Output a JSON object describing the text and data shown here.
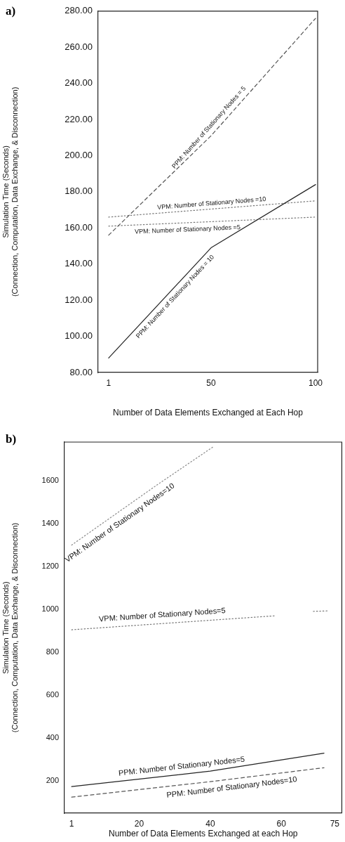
{
  "chart_data": [
    {
      "type": "line",
      "title": "a)",
      "xlabel": "Number of Data Elements Exchanged at Each Hop",
      "ylabel": "Simulation Time (Seconds)\n(Connection, Computation, Data Exchange, & Disconnection)",
      "xlim": [
        -4,
        101
      ],
      "xticks": [
        1,
        50,
        100
      ],
      "ylim": [
        80,
        280
      ],
      "yticks": [
        {
          "value": 80,
          "label": "80.00"
        },
        {
          "value": 100,
          "label": "100.00"
        },
        {
          "value": 120,
          "label": "120.00"
        },
        {
          "value": 140,
          "label": "140.00"
        },
        {
          "value": 160,
          "label": "160.00"
        },
        {
          "value": 180,
          "label": "180.00"
        },
        {
          "value": 200,
          "label": "200.00"
        },
        {
          "value": 220,
          "label": "220.00"
        },
        {
          "value": 240,
          "label": "240.00"
        },
        {
          "value": 260,
          "label": "260.00"
        },
        {
          "value": 280,
          "label": "280.00"
        }
      ],
      "grid": false,
      "series": [
        {
          "name": "PPM: Number of Stationary Nodes = 5",
          "color": "#555555",
          "line_style": "dashed",
          "x": [
            1,
            50,
            100
          ],
          "values": [
            156,
            211,
            276
          ]
        },
        {
          "name": "PPM: Number of Stationary Nodes = 10",
          "color": "#222222",
          "line_style": "solid",
          "x": [
            1,
            50,
            100
          ],
          "values": [
            88,
            149,
            184
          ]
        },
        {
          "name": "VPM: Number of Stationary Nodes =10",
          "color": "#777777",
          "line_style": "dotted",
          "x": [
            1,
            100
          ],
          "values": [
            166,
            175
          ]
        },
        {
          "name": "VPM: Number of Stationary Nodes =5",
          "color": "#777777",
          "line_style": "dotted",
          "x": [
            1,
            100
          ],
          "values": [
            161,
            166
          ]
        }
      ]
    },
    {
      "type": "line",
      "title": "b)",
      "xlabel": "Number of Data Elements Exchanged at each Hop",
      "ylabel": "Simulation Time (Seconds)\n(Connection, Computation, Data Exchange, & Disconnection)",
      "xlim": [
        -1,
        77
      ],
      "xticks": [
        1,
        20,
        40,
        60,
        75
      ],
      "ylim": [
        50,
        1780
      ],
      "yticks": [
        200,
        400,
        600,
        800,
        1000,
        1200,
        1400,
        1600
      ],
      "grid": false,
      "series": [
        {
          "name": "VPM: Number of Stationary Nodes=10",
          "color": "#888888",
          "line_style": "dotted",
          "x": [
            1,
            25,
            41
          ],
          "values": [
            1300,
            1580,
            1760
          ]
        },
        {
          "name": "VPM: Number of Stationary Nodes=5",
          "color": "#777777",
          "line_style": "dotted",
          "x": [
            1,
            58,
            64,
            69,
            73
          ],
          "values": [
            905,
            970,
            null,
            991,
            993
          ]
        },
        {
          "name": "PPM: Number of Stationary Nodes=5",
          "color": "#222222",
          "line_style": "solid",
          "x": [
            1,
            40,
            72
          ],
          "values": [
            174,
            246,
            330
          ]
        },
        {
          "name": "PPM: Number of Stationary Nodes=10",
          "color": "#555555",
          "line_style": "dashed",
          "x": [
            1,
            40,
            72
          ],
          "values": [
            125,
            197,
            262
          ]
        }
      ]
    }
  ]
}
